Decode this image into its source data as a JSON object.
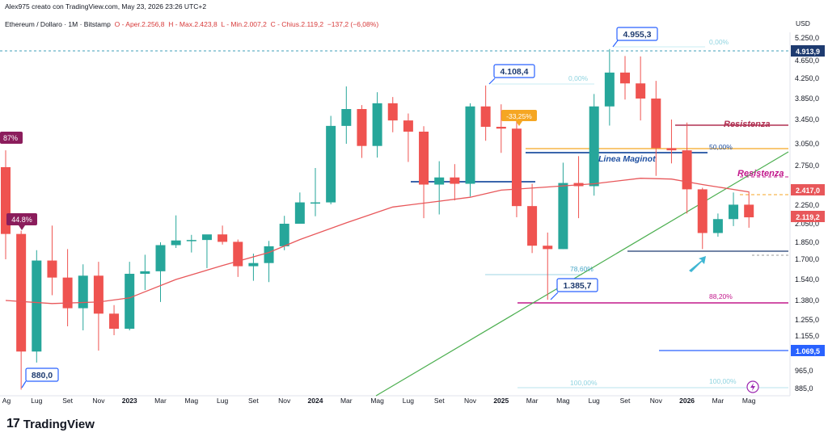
{
  "header": {
    "attribution": "Alex975 creato con TradingView.com, May 23, 2026 23:26 UTC+2",
    "symbol_line": "Ethereum / Dollaro · 1M · Bitstamp",
    "open": "O - Aper.2.256,8",
    "high": "H - Max.2.423,8",
    "low": "L - Min.2.007,2",
    "close": "C - Chius.2.119,2",
    "change": "−137,2 (−6,08%)"
  },
  "brand": {
    "name": "TradingView",
    "logo_text": "17"
  },
  "axis": {
    "currency": "USD"
  },
  "colors": {
    "up": "#26a69a",
    "down": "#ef5350",
    "ma": "#e8575a",
    "trendline": "#4caf50",
    "maginot": "#1e4fa1",
    "resistance": "#b03052",
    "fib50": "#f5a623",
    "fib88": "#c2188c",
    "label_blue": "#2962ff"
  },
  "chart_data": {
    "type": "candlestick",
    "title": "Ethereum / Dollaro · 1M · Bitstamp",
    "xlabel": "",
    "ylabel": "USD",
    "y_ticks": [
      885,
      965,
      1155,
      1255,
      1380,
      1540,
      1700,
      1850,
      2050,
      2250,
      2750,
      3050,
      3450,
      3850,
      4250,
      4650,
      5250
    ],
    "y_tick_labels": [
      "885,0",
      "965,0",
      "1.155,0",
      "1.255,0",
      "1.380,0",
      "1.540,0",
      "1.700,0",
      "1.850,0",
      "2.050,0",
      "2.250,0",
      "2.750,0",
      "3.050,0",
      "3.450,0",
      "3.850,0",
      "4.250,0",
      "4.650,0",
      "5.250,0"
    ],
    "x_labels": [
      {
        "text": "Ag",
        "date": "2022-08",
        "bold": false
      },
      {
        "text": "Lug",
        "date": "2022-07",
        "bold": false
      },
      {
        "text": "Set",
        "date": "2022-09",
        "bold": false
      },
      {
        "text": "Nov",
        "date": "2022-11",
        "bold": false
      },
      {
        "text": "2023",
        "date": "2023-01",
        "bold": true
      },
      {
        "text": "Mar",
        "date": "2023-03",
        "bold": false
      },
      {
        "text": "Mag",
        "date": "2023-05",
        "bold": false
      },
      {
        "text": "Lug",
        "date": "2023-07",
        "bold": false
      },
      {
        "text": "Set",
        "date": "2023-09",
        "bold": false
      },
      {
        "text": "Nov",
        "date": "2023-11",
        "bold": false
      },
      {
        "text": "2024",
        "date": "2024-01",
        "bold": true
      },
      {
        "text": "Mar",
        "date": "2024-03",
        "bold": false
      },
      {
        "text": "Mag",
        "date": "2024-05",
        "bold": false
      },
      {
        "text": "Lug",
        "date": "2024-07",
        "bold": false
      },
      {
        "text": "Set",
        "date": "2024-09",
        "bold": false
      },
      {
        "text": "Nov",
        "date": "2024-11",
        "bold": false
      },
      {
        "text": "2025",
        "date": "2025-01",
        "bold": true
      },
      {
        "text": "Mar",
        "date": "2025-03",
        "bold": false
      },
      {
        "text": "Mag",
        "date": "2025-05",
        "bold": false
      },
      {
        "text": "Lug",
        "date": "2025-07",
        "bold": false
      },
      {
        "text": "Set",
        "date": "2025-09",
        "bold": false
      },
      {
        "text": "Nov",
        "date": "2025-11",
        "bold": false
      },
      {
        "text": "2026",
        "date": "2026-01",
        "bold": true
      },
      {
        "text": "Mar",
        "date": "2026-03",
        "bold": false
      },
      {
        "text": "Mag",
        "date": "2026-05",
        "bold": false
      }
    ],
    "candles": [
      {
        "date": "2022-05",
        "o": 2730,
        "h": 2960,
        "l": 1700,
        "c": 1940
      },
      {
        "date": "2022-06",
        "o": 1940,
        "h": 1975,
        "l": 880,
        "c": 1070
      },
      {
        "date": "2022-07",
        "o": 1070,
        "h": 1780,
        "l": 1010,
        "c": 1690
      },
      {
        "date": "2022-08",
        "o": 1690,
        "h": 2030,
        "l": 1420,
        "c": 1555
      },
      {
        "date": "2022-09",
        "o": 1555,
        "h": 1790,
        "l": 1215,
        "c": 1330
      },
      {
        "date": "2022-10",
        "o": 1330,
        "h": 1660,
        "l": 1190,
        "c": 1570
      },
      {
        "date": "2022-11",
        "o": 1570,
        "h": 1680,
        "l": 1075,
        "c": 1295
      },
      {
        "date": "2022-12",
        "o": 1295,
        "h": 1350,
        "l": 1160,
        "c": 1200
      },
      {
        "date": "2023-01",
        "o": 1200,
        "h": 1680,
        "l": 1190,
        "c": 1585
      },
      {
        "date": "2023-02",
        "o": 1585,
        "h": 1740,
        "l": 1460,
        "c": 1605
      },
      {
        "date": "2023-03",
        "o": 1605,
        "h": 1850,
        "l": 1370,
        "c": 1825
      },
      {
        "date": "2023-04",
        "o": 1825,
        "h": 2140,
        "l": 1800,
        "c": 1870
      },
      {
        "date": "2023-05",
        "o": 1870,
        "h": 1930,
        "l": 1760,
        "c": 1875
      },
      {
        "date": "2023-06",
        "o": 1875,
        "h": 1930,
        "l": 1630,
        "c": 1935
      },
      {
        "date": "2023-07",
        "o": 1935,
        "h": 2030,
        "l": 1830,
        "c": 1855
      },
      {
        "date": "2023-08",
        "o": 1855,
        "h": 1880,
        "l": 1560,
        "c": 1645
      },
      {
        "date": "2023-09",
        "o": 1645,
        "h": 1750,
        "l": 1530,
        "c": 1670
      },
      {
        "date": "2023-10",
        "o": 1670,
        "h": 1865,
        "l": 1520,
        "c": 1815
      },
      {
        "date": "2023-11",
        "o": 1815,
        "h": 2135,
        "l": 1780,
        "c": 2050
      },
      {
        "date": "2023-12",
        "o": 2050,
        "h": 2410,
        "l": 2050,
        "c": 2285
      },
      {
        "date": "2024-01",
        "o": 2285,
        "h": 2720,
        "l": 2130,
        "c": 2285
      },
      {
        "date": "2024-02",
        "o": 2285,
        "h": 3520,
        "l": 2260,
        "c": 3345
      },
      {
        "date": "2024-03",
        "o": 3345,
        "h": 4090,
        "l": 3050,
        "c": 3650
      },
      {
        "date": "2024-04",
        "o": 3650,
        "h": 3725,
        "l": 2855,
        "c": 3020
      },
      {
        "date": "2024-05",
        "o": 3020,
        "h": 3975,
        "l": 2860,
        "c": 3760
      },
      {
        "date": "2024-06",
        "o": 3760,
        "h": 3880,
        "l": 3240,
        "c": 3435
      },
      {
        "date": "2024-07",
        "o": 3435,
        "h": 3565,
        "l": 2800,
        "c": 3250
      },
      {
        "date": "2024-08",
        "o": 3250,
        "h": 3340,
        "l": 2110,
        "c": 2510
      },
      {
        "date": "2024-09",
        "o": 2510,
        "h": 2810,
        "l": 2150,
        "c": 2600
      },
      {
        "date": "2024-10",
        "o": 2600,
        "h": 2770,
        "l": 2310,
        "c": 2520
      },
      {
        "date": "2024-11",
        "o": 2520,
        "h": 3760,
        "l": 2360,
        "c": 3700
      },
      {
        "date": "2024-12",
        "o": 3700,
        "h": 4108,
        "l": 3100,
        "c": 3330
      },
      {
        "date": "2025-01",
        "o": 3330,
        "h": 3740,
        "l": 2925,
        "c": 3300
      },
      {
        "date": "2025-02",
        "o": 3300,
        "h": 3440,
        "l": 2120,
        "c": 2240
      },
      {
        "date": "2025-03",
        "o": 2240,
        "h": 2520,
        "l": 1755,
        "c": 1820
      },
      {
        "date": "2025-04",
        "o": 1820,
        "h": 1955,
        "l": 1385,
        "c": 1790
      },
      {
        "date": "2025-05",
        "o": 1790,
        "h": 2790,
        "l": 1790,
        "c": 2530
      },
      {
        "date": "2025-06",
        "o": 2530,
        "h": 2880,
        "l": 2110,
        "c": 2490
      },
      {
        "date": "2025-07",
        "o": 2490,
        "h": 3940,
        "l": 2370,
        "c": 3700
      },
      {
        "date": "2025-08",
        "o": 3700,
        "h": 4955,
        "l": 3350,
        "c": 4380
      },
      {
        "date": "2025-09",
        "o": 4380,
        "h": 4770,
        "l": 3830,
        "c": 4150
      },
      {
        "date": "2025-10",
        "o": 4150,
        "h": 4760,
        "l": 3435,
        "c": 3850
      },
      {
        "date": "2025-11",
        "o": 3850,
        "h": 4200,
        "l": 2620,
        "c": 2990
      },
      {
        "date": "2025-12",
        "o": 2990,
        "h": 3450,
        "l": 2780,
        "c": 2960
      },
      {
        "date": "2026-01",
        "o": 2960,
        "h": 3400,
        "l": 2160,
        "c": 2450
      },
      {
        "date": "2026-02",
        "o": 2450,
        "h": 2470,
        "l": 1790,
        "c": 1950
      },
      {
        "date": "2026-03",
        "o": 1950,
        "h": 2160,
        "l": 1910,
        "c": 2100
      },
      {
        "date": "2026-04",
        "o": 2100,
        "h": 2410,
        "l": 2025,
        "c": 2256
      },
      {
        "date": "2026-05",
        "o": 2256,
        "h": 2423,
        "l": 2007,
        "c": 2119
      }
    ],
    "moving_average": [
      [
        "2022-05",
        1380
      ],
      [
        "2022-08",
        1360
      ],
      [
        "2022-11",
        1370
      ],
      [
        "2023-01",
        1400
      ],
      [
        "2023-04",
        1540
      ],
      [
        "2023-07",
        1650
      ],
      [
        "2023-10",
        1760
      ],
      [
        "2023-12",
        1880
      ],
      [
        "2024-03",
        2060
      ],
      [
        "2024-06",
        2230
      ],
      [
        "2024-09",
        2300
      ],
      [
        "2024-11",
        2350
      ],
      [
        "2025-01",
        2440
      ],
      [
        "2025-04",
        2480
      ],
      [
        "2025-07",
        2520
      ],
      [
        "2025-10",
        2590
      ],
      [
        "2025-12",
        2580
      ],
      [
        "2026-02",
        2510
      ],
      [
        "2026-05",
        2417
      ]
    ],
    "price_labels": [
      {
        "text": "4.108,4",
        "value": 4108.4,
        "color": "#2962ff"
      },
      {
        "text": "4.955,3",
        "value": 4955.3,
        "color": "#2962ff"
      },
      {
        "text": "1.385,7",
        "value": 1385.7,
        "color": "#2962ff"
      },
      {
        "text": "880,0",
        "value": 880.0,
        "color": "#2962ff"
      }
    ],
    "annotations": [
      {
        "text": "Linea Maginot",
        "color": "#1e4fa1"
      },
      {
        "text": "Resistenza",
        "color": "#b03052"
      },
      {
        "text": "Resistenza",
        "color": "#c2188c"
      },
      {
        "text": "50,00%",
        "color": "#1e4fa1"
      },
      {
        "text": "78,60%",
        "color": "#4aa8c8"
      },
      {
        "text": "88,20%",
        "color": "#c2188c"
      },
      {
        "text": "100,00%",
        "color": "#90d4e0"
      },
      {
        "text": "0,00%",
        "color": "#90d4e0"
      },
      {
        "text": "100,00%",
        "color": "#90d4e0"
      },
      {
        "text": "-33,25%",
        "color": "#ffffff"
      },
      {
        "text": "44.8%",
        "color": "#ffffff"
      },
      {
        "text": "87%",
        "color": "#ffffff"
      }
    ],
    "axis_badges": [
      {
        "text": "4.913,9",
        "color": "#1e3b70"
      },
      {
        "text": "2.417,0",
        "color": "#e8575a"
      },
      {
        "text": "2.119,2",
        "color": "#e8575a"
      },
      {
        "text": "1.069,5",
        "color": "#2962ff"
      }
    ],
    "grid": false,
    "legend": "none"
  }
}
